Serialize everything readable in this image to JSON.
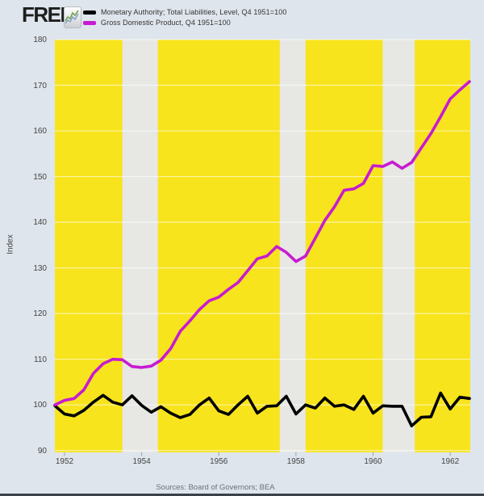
{
  "header": {
    "logo_text": "FRED",
    "legend": [
      {
        "label": "Monetary Authority; Total Liabilities, Level, Q4 1951=100",
        "color": "#000000"
      },
      {
        "label": "Gross Domestic Product, Q4 1951=100",
        "color": "#c71bd1"
      }
    ]
  },
  "footer": {
    "sources_label": "Sources: Board of Governors; BEA"
  },
  "colors": {
    "page_background": "#dfe5ec",
    "plot_background": "#f8e41c",
    "recession_band": "#e7e7e4",
    "gridline": "rgba(255,255,255,0.6)",
    "axis_text": "#424242",
    "tick_mark": "#9aa1a8",
    "footer_bar": "#3d4248"
  },
  "chart_data": {
    "type": "line",
    "title": "",
    "xlabel": "",
    "ylabel": "Index",
    "grid": true,
    "legend_position": "top-header",
    "xlim": [
      1951.75,
      1962.52
    ],
    "ylim": [
      89.6,
      180
    ],
    "x_ticks": [
      1952,
      1954,
      1956,
      1958,
      1960,
      1962
    ],
    "x_tick_labels": [
      "1952",
      "1954",
      "1956",
      "1958",
      "1960",
      "1962"
    ],
    "y_ticks": [
      90,
      100,
      110,
      120,
      130,
      140,
      150,
      160,
      170,
      180
    ],
    "y_tick_labels": [
      "90",
      "100",
      "110",
      "120",
      "130",
      "140",
      "150",
      "160",
      "170",
      "180"
    ],
    "x": [
      1951.75,
      1952.0,
      1952.25,
      1952.5,
      1952.75,
      1953.0,
      1953.25,
      1953.5,
      1953.75,
      1954.0,
      1954.25,
      1954.5,
      1954.75,
      1955.0,
      1955.25,
      1955.5,
      1955.75,
      1956.0,
      1956.25,
      1956.5,
      1956.75,
      1957.0,
      1957.25,
      1957.5,
      1957.75,
      1958.0,
      1958.25,
      1958.5,
      1958.75,
      1959.0,
      1959.25,
      1959.5,
      1959.75,
      1960.0,
      1960.25,
      1960.5,
      1960.75,
      1961.0,
      1961.25,
      1961.5,
      1961.75,
      1962.0,
      1962.25,
      1962.5
    ],
    "series": [
      {
        "name": "Monetary Authority; Total Liabilities, Level, Q4 1951=100",
        "color": "#000000",
        "values": [
          99.8,
          98.0,
          97.6,
          98.8,
          100.6,
          102.1,
          100.6,
          100.0,
          102.0,
          99.9,
          98.4,
          99.6,
          98.2,
          97.2,
          97.9,
          100.0,
          101.5,
          98.7,
          97.9,
          100.0,
          101.9,
          98.2,
          99.7,
          99.8,
          101.9,
          98.0,
          100.0,
          99.3,
          101.5,
          99.7,
          100.0,
          99.0,
          101.9,
          98.2,
          99.8,
          99.7,
          99.7,
          95.4,
          97.3,
          97.4,
          102.6,
          99.1,
          101.7,
          101.4
        ]
      },
      {
        "name": "Gross Domestic Product, Q4 1951=100",
        "color": "#c71bd1",
        "values": [
          100.0,
          101.0,
          101.4,
          103.3,
          106.9,
          109.0,
          110.0,
          109.9,
          108.4,
          108.2,
          108.5,
          109.8,
          112.3,
          116.1,
          118.4,
          120.9,
          122.8,
          123.6,
          125.3,
          126.8,
          129.4,
          132.0,
          132.6,
          134.7,
          133.4,
          131.4,
          132.6,
          136.5,
          140.4,
          143.4,
          147.0,
          147.3,
          148.5,
          152.4,
          152.2,
          153.2,
          151.8,
          153.1,
          156.3,
          159.4,
          163.1,
          167.0,
          169.0,
          170.8
        ]
      }
    ],
    "recession_bands_x": [
      [
        1953.5,
        1954.42
      ],
      [
        1957.58,
        1958.25
      ],
      [
        1960.25,
        1961.08
      ]
    ]
  }
}
